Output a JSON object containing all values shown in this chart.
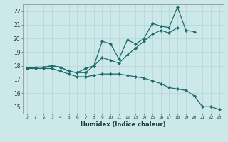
{
  "xlabel": "Humidex (Indice chaleur)",
  "ylabel": "",
  "bg_color": "#cce8e8",
  "grid_color": "#b8d8d8",
  "line_color": "#1a6b6b",
  "x_values": [
    0,
    1,
    2,
    3,
    4,
    5,
    6,
    7,
    8,
    9,
    10,
    11,
    12,
    13,
    14,
    15,
    16,
    17,
    18,
    19,
    20,
    21,
    22,
    23
  ],
  "line1": [
    17.8,
    17.9,
    17.9,
    18.0,
    17.9,
    17.6,
    17.5,
    17.8,
    18.0,
    19.8,
    19.6,
    18.5,
    19.9,
    19.6,
    20.0,
    21.1,
    20.9,
    20.8,
    22.3,
    20.6,
    20.5,
    null,
    null,
    null
  ],
  "line2": [
    17.8,
    17.9,
    17.9,
    18.0,
    17.9,
    17.6,
    17.5,
    17.5,
    18.0,
    18.6,
    18.4,
    18.2,
    18.8,
    19.3,
    19.8,
    20.3,
    20.6,
    20.4,
    20.8,
    null,
    null,
    null,
    null,
    null
  ],
  "line3": [
    17.8,
    17.8,
    17.8,
    17.8,
    17.6,
    17.4,
    17.2,
    17.2,
    17.3,
    17.4,
    17.4,
    17.4,
    17.3,
    17.2,
    17.1,
    16.9,
    16.7,
    16.4,
    16.3,
    16.2,
    15.8,
    15.0,
    15.0,
    14.8
  ],
  "ylim": [
    14.5,
    22.5
  ],
  "xlim": [
    -0.5,
    23.5
  ],
  "yticks": [
    15,
    16,
    17,
    18,
    19,
    20,
    21,
    22
  ],
  "xticks": [
    0,
    1,
    2,
    3,
    4,
    5,
    6,
    7,
    8,
    9,
    10,
    11,
    12,
    13,
    14,
    15,
    16,
    17,
    18,
    19,
    20,
    21,
    22,
    23
  ],
  "marker": "D",
  "markersize": 2,
  "linewidth": 0.9,
  "figsize": [
    3.2,
    2.0
  ],
  "dpi": 100
}
